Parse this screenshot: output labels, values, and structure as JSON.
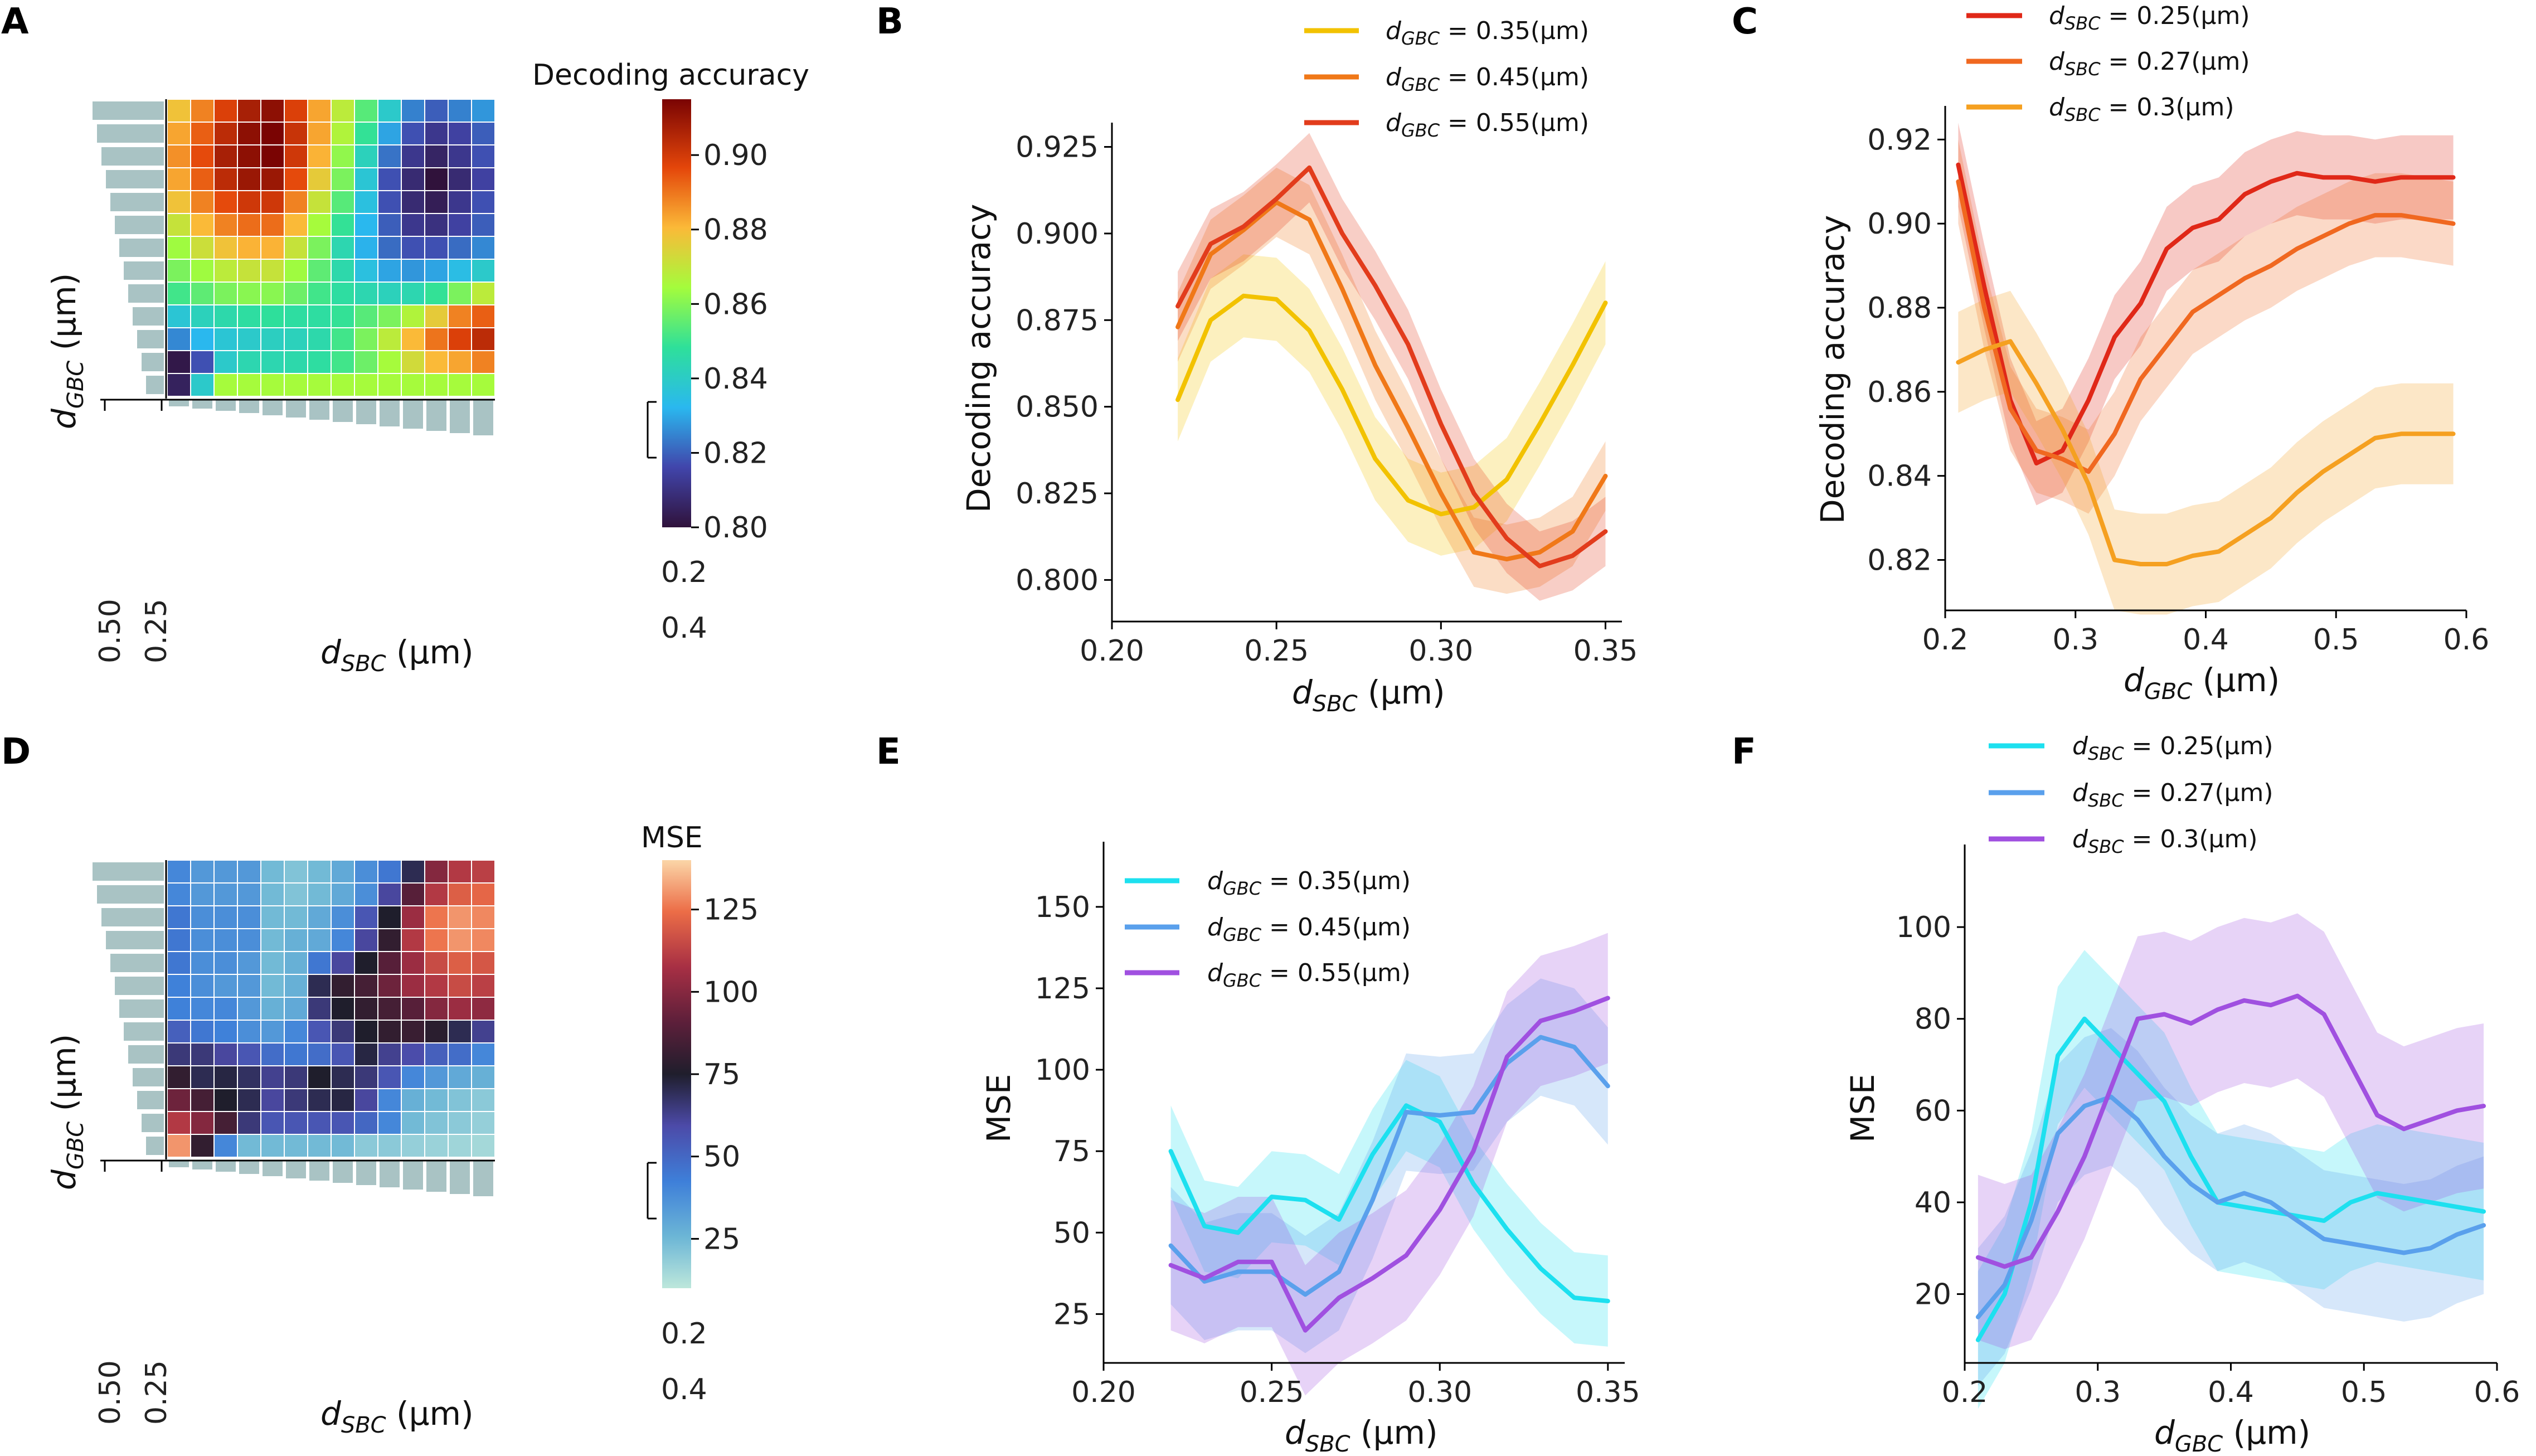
{
  "panels": {
    "A": "A",
    "B": "B",
    "C": "C",
    "D": "D",
    "E": "E",
    "F": "F"
  },
  "chart_data": [
    {
      "id": "A",
      "type": "heatmap",
      "colormap": "turbo",
      "title": "",
      "colorbar_title": "Decoding accuracy",
      "xlabel_main": "d",
      "xlabel_sub": "SBC",
      "xlabel_unit": " (μm)",
      "ylabel_main": "d",
      "ylabel_sub": "GBC",
      "ylabel_unit": " (μm)",
      "dendro_x_ticks": [
        "0.2",
        "0.4"
      ],
      "dendro_y_ticks": [
        "0.50",
        "0.25"
      ],
      "clim": [
        0.8,
        0.915
      ],
      "colorbar_ticks": [
        0.8,
        0.82,
        0.84,
        0.86,
        0.88,
        0.9
      ],
      "colorbar_tick_labels": [
        "0.80",
        "0.82",
        "0.84",
        "0.86",
        "0.88",
        "0.90"
      ],
      "values": [
        [
          0.88,
          0.89,
          0.9,
          0.908,
          0.912,
          0.9,
          0.885,
          0.87,
          0.855,
          0.84,
          0.825,
          0.82,
          0.825,
          0.828
        ],
        [
          0.885,
          0.895,
          0.905,
          0.912,
          0.918,
          0.903,
          0.885,
          0.868,
          0.85,
          0.83,
          0.818,
          0.812,
          0.815,
          0.82
        ],
        [
          0.888,
          0.898,
          0.908,
          0.912,
          0.915,
          0.902,
          0.883,
          0.863,
          0.843,
          0.823,
          0.812,
          0.806,
          0.812,
          0.818
        ],
        [
          0.885,
          0.895,
          0.905,
          0.91,
          0.91,
          0.898,
          0.878,
          0.86,
          0.838,
          0.818,
          0.808,
          0.8,
          0.808,
          0.815
        ],
        [
          0.88,
          0.89,
          0.898,
          0.902,
          0.902,
          0.89,
          0.872,
          0.855,
          0.836,
          0.818,
          0.808,
          0.804,
          0.812,
          0.818
        ],
        [
          0.872,
          0.882,
          0.89,
          0.893,
          0.893,
          0.882,
          0.866,
          0.85,
          0.833,
          0.82,
          0.812,
          0.81,
          0.815,
          0.82
        ],
        [
          0.865,
          0.873,
          0.88,
          0.883,
          0.883,
          0.872,
          0.86,
          0.845,
          0.832,
          0.822,
          0.818,
          0.818,
          0.822,
          0.826
        ],
        [
          0.86,
          0.865,
          0.87,
          0.872,
          0.872,
          0.865,
          0.856,
          0.846,
          0.836,
          0.83,
          0.828,
          0.83,
          0.835,
          0.84
        ],
        [
          0.852,
          0.856,
          0.86,
          0.862,
          0.862,
          0.858,
          0.852,
          0.848,
          0.845,
          0.843,
          0.845,
          0.85,
          0.86,
          0.87
        ],
        [
          0.838,
          0.843,
          0.846,
          0.848,
          0.849,
          0.848,
          0.848,
          0.85,
          0.855,
          0.86,
          0.868,
          0.878,
          0.89,
          0.895
        ],
        [
          0.826,
          0.833,
          0.838,
          0.84,
          0.842,
          0.843,
          0.846,
          0.852,
          0.86,
          0.87,
          0.882,
          0.892,
          0.9,
          0.905
        ],
        [
          0.802,
          0.818,
          0.84,
          0.845,
          0.845,
          0.846,
          0.848,
          0.852,
          0.858,
          0.866,
          0.874,
          0.882,
          0.885,
          0.89
        ],
        [
          0.805,
          0.84,
          0.866,
          0.866,
          0.866,
          0.866,
          0.866,
          0.866,
          0.866,
          0.866,
          0.866,
          0.866,
          0.866,
          0.866
        ]
      ]
    },
    {
      "id": "B",
      "type": "line",
      "title": "",
      "xlabel_main": "d",
      "xlabel_sub": "SBC",
      "xlabel_unit": " (μm)",
      "ylabel": "Decoding accuracy",
      "xlim": [
        0.2,
        0.355
      ],
      "ylim": [
        0.788,
        0.932
      ],
      "xticks": [
        0.2,
        0.25,
        0.3,
        0.35
      ],
      "xtick_labels": [
        "0.20",
        "0.25",
        "0.30",
        "0.35"
      ],
      "yticks": [
        0.8,
        0.825,
        0.85,
        0.875,
        0.9,
        0.925
      ],
      "ytick_labels": [
        "0.800",
        "0.825",
        "0.850",
        "0.875",
        "0.900",
        "0.925"
      ],
      "x": [
        0.22,
        0.23,
        0.24,
        0.25,
        0.26,
        0.27,
        0.28,
        0.29,
        0.3,
        0.31,
        0.32,
        0.33,
        0.34,
        0.35
      ],
      "series": [
        {
          "name": "d_GBC = 0.35(μm)",
          "label_main": "d",
          "label_sub": "GBC",
          "label_rest": " = 0.35(μm)",
          "color": "#f2c200",
          "values": [
            0.852,
            0.875,
            0.882,
            0.881,
            0.872,
            0.855,
            0.835,
            0.823,
            0.819,
            0.821,
            0.829,
            0.845,
            0.862,
            0.88
          ],
          "band": 0.012
        },
        {
          "name": "d_GBC = 0.45(μm)",
          "label_main": "d",
          "label_sub": "GBC",
          "label_rest": " = 0.45(μm)",
          "color": "#f07818",
          "values": [
            0.873,
            0.894,
            0.901,
            0.909,
            0.904,
            0.884,
            0.862,
            0.844,
            0.825,
            0.808,
            0.806,
            0.808,
            0.814,
            0.83
          ],
          "band": 0.01
        },
        {
          "name": "d_GBC = 0.55(μm)",
          "label_main": "d",
          "label_sub": "GBC",
          "label_rest": " = 0.55(μm)",
          "color": "#e23c1c",
          "values": [
            0.879,
            0.897,
            0.902,
            0.91,
            0.919,
            0.9,
            0.885,
            0.868,
            0.845,
            0.825,
            0.812,
            0.804,
            0.807,
            0.814
          ],
          "band": 0.01
        }
      ]
    },
    {
      "id": "C",
      "type": "line",
      "title": "",
      "xlabel_main": "d",
      "xlabel_sub": "GBC",
      "xlabel_unit": " (μm)",
      "ylabel": "Decoding accuracy",
      "xlim": [
        0.2,
        0.6
      ],
      "ylim": [
        0.808,
        0.928
      ],
      "xticks": [
        0.2,
        0.3,
        0.4,
        0.5,
        0.6
      ],
      "xtick_labels": [
        "0.2",
        "0.3",
        "0.4",
        "0.5",
        "0.6"
      ],
      "yticks": [
        0.82,
        0.84,
        0.86,
        0.88,
        0.9,
        0.92
      ],
      "ytick_labels": [
        "0.82",
        "0.84",
        "0.86",
        "0.88",
        "0.90",
        "0.92"
      ],
      "x": [
        0.21,
        0.23,
        0.25,
        0.27,
        0.29,
        0.31,
        0.33,
        0.35,
        0.37,
        0.39,
        0.41,
        0.43,
        0.45,
        0.47,
        0.49,
        0.51,
        0.53,
        0.55,
        0.57,
        0.59
      ],
      "series": [
        {
          "name": "d_SBC = 0.25(μm)",
          "label_main": "d",
          "label_sub": "SBC",
          "label_rest": " = 0.25(μm)",
          "color": "#e02818",
          "values": [
            0.914,
            0.885,
            0.858,
            0.843,
            0.846,
            0.858,
            0.873,
            0.881,
            0.894,
            0.899,
            0.901,
            0.907,
            0.91,
            0.912,
            0.911,
            0.911,
            0.91,
            0.911,
            0.911,
            0.911
          ],
          "band": 0.01
        },
        {
          "name": "d_SBC = 0.27(μm)",
          "label_main": "d",
          "label_sub": "SBC",
          "label_rest": " = 0.27(μm)",
          "color": "#f06820",
          "values": [
            0.91,
            0.88,
            0.856,
            0.846,
            0.844,
            0.841,
            0.85,
            0.863,
            0.871,
            0.879,
            0.883,
            0.887,
            0.89,
            0.894,
            0.897,
            0.9,
            0.902,
            0.902,
            0.901,
            0.9
          ],
          "band": 0.01
        },
        {
          "name": "d_SBC = 0.3(μm)",
          "label_main": "d",
          "label_sub": "SBC",
          "label_rest": " = 0.3(μm)",
          "color": "#f5a020",
          "values": [
            0.867,
            0.87,
            0.872,
            0.862,
            0.851,
            0.838,
            0.82,
            0.819,
            0.819,
            0.821,
            0.822,
            0.826,
            0.83,
            0.836,
            0.841,
            0.845,
            0.849,
            0.85,
            0.85,
            0.85
          ],
          "band": 0.012
        }
      ]
    },
    {
      "id": "D",
      "type": "heatmap",
      "colormap": "icefire",
      "title": "",
      "colorbar_title": "MSE",
      "xlabel_main": "d",
      "xlabel_sub": "SBC",
      "xlabel_unit": " (μm)",
      "ylabel_main": "d",
      "ylabel_sub": "GBC",
      "ylabel_unit": " (μm)",
      "dendro_x_ticks": [
        "0.2",
        "0.4"
      ],
      "dendro_y_ticks": [
        "0.50",
        "0.25"
      ],
      "clim": [
        10,
        140
      ],
      "colorbar_ticks": [
        25,
        50,
        75,
        100,
        125
      ],
      "colorbar_tick_labels": [
        "25",
        "50",
        "75",
        "100",
        "125"
      ],
      "values": [
        [
          40,
          35,
          35,
          35,
          25,
          22,
          25,
          30,
          38,
          45,
          70,
          100,
          110,
          112
        ],
        [
          40,
          35,
          35,
          35,
          25,
          22,
          25,
          30,
          38,
          60,
          90,
          110,
          120,
          122
        ],
        [
          45,
          38,
          38,
          38,
          25,
          25,
          30,
          38,
          55,
          75,
          105,
          125,
          130,
          128
        ],
        [
          45,
          38,
          38,
          38,
          25,
          28,
          30,
          40,
          60,
          80,
          110,
          125,
          130,
          128
        ],
        [
          45,
          38,
          38,
          35,
          25,
          28,
          45,
          60,
          75,
          90,
          105,
          115,
          120,
          118
        ],
        [
          42,
          38,
          35,
          35,
          25,
          28,
          70,
          80,
          85,
          95,
          105,
          110,
          115,
          112
        ],
        [
          42,
          40,
          40,
          35,
          28,
          30,
          65,
          75,
          80,
          85,
          90,
          100,
          105,
          102
        ],
        [
          52,
          45,
          42,
          38,
          35,
          40,
          55,
          65,
          75,
          80,
          82,
          78,
          70,
          62
        ],
        [
          65,
          65,
          60,
          55,
          48,
          45,
          48,
          55,
          72,
          62,
          58,
          52,
          48,
          40
        ],
        [
          80,
          70,
          72,
          68,
          62,
          65,
          75,
          70,
          65,
          55,
          40,
          35,
          30,
          28
        ],
        [
          95,
          85,
          75,
          70,
          60,
          65,
          70,
          72,
          60,
          40,
          28,
          25,
          22,
          20
        ],
        [
          110,
          100,
          85,
          65,
          55,
          55,
          55,
          55,
          50,
          40,
          25,
          22,
          20,
          18
        ],
        [
          130,
          80,
          40,
          25,
          25,
          25,
          25,
          25,
          20,
          20,
          18,
          17,
          16,
          15
        ]
      ]
    },
    {
      "id": "E",
      "type": "line",
      "title": "",
      "xlabel_main": "d",
      "xlabel_sub": "SBC",
      "xlabel_unit": " (μm)",
      "ylabel": "MSE",
      "xlim": [
        0.2,
        0.355
      ],
      "ylim": [
        10,
        170
      ],
      "xticks": [
        0.2,
        0.25,
        0.3,
        0.35
      ],
      "xtick_labels": [
        "0.20",
        "0.25",
        "0.30",
        "0.35"
      ],
      "yticks": [
        25,
        50,
        75,
        100,
        125,
        150
      ],
      "ytick_labels": [
        "25",
        "50",
        "75",
        "100",
        "125",
        "150"
      ],
      "x": [
        0.22,
        0.23,
        0.24,
        0.25,
        0.26,
        0.27,
        0.28,
        0.29,
        0.3,
        0.31,
        0.32,
        0.33,
        0.34,
        0.35
      ],
      "series": [
        {
          "name": "d_GBC = 0.35(μm)",
          "label_main": "d",
          "label_sub": "GBC",
          "label_rest": " = 0.35(μm)",
          "color": "#1de0ef",
          "values": [
            75,
            52,
            50,
            61,
            60,
            54,
            74,
            89,
            84,
            65,
            51,
            39,
            30,
            29
          ],
          "band": 14
        },
        {
          "name": "d_GBC = 0.45(μm)",
          "label_main": "d",
          "label_sub": "GBC",
          "label_rest": " = 0.45(μm)",
          "color": "#5aa0ec",
          "values": [
            46,
            35,
            38,
            38,
            31,
            38,
            60,
            87,
            86,
            87,
            102,
            110,
            107,
            95
          ],
          "band": 18
        },
        {
          "name": "d_GBC = 0.55(μm)",
          "label_main": "d",
          "label_sub": "GBC",
          "label_rest": " = 0.55(μm)",
          "color": "#a050e0",
          "values": [
            40,
            36,
            41,
            41,
            20,
            30,
            36,
            43,
            57,
            75,
            104,
            115,
            118,
            122
          ],
          "band": 20
        }
      ]
    },
    {
      "id": "F",
      "type": "line",
      "title": "",
      "xlabel_main": "d",
      "xlabel_sub": "GBC",
      "xlabel_unit": " (μm)",
      "ylabel": "MSE",
      "xlim": [
        0.2,
        0.6
      ],
      "ylim": [
        5,
        118
      ],
      "xticks": [
        0.2,
        0.3,
        0.4,
        0.5,
        0.6
      ],
      "xtick_labels": [
        "0.2",
        "0.3",
        "0.4",
        "0.5",
        "0.6"
      ],
      "yticks": [
        20,
        40,
        60,
        80,
        100
      ],
      "ytick_labels": [
        "20",
        "40",
        "60",
        "80",
        "100"
      ],
      "x": [
        0.21,
        0.23,
        0.25,
        0.27,
        0.29,
        0.31,
        0.33,
        0.35,
        0.37,
        0.39,
        0.41,
        0.43,
        0.45,
        0.47,
        0.49,
        0.51,
        0.53,
        0.55,
        0.57,
        0.59
      ],
      "series": [
        {
          "name": "d_SBC = 0.25(μm)",
          "label_main": "d",
          "label_sub": "SBC",
          "label_rest": " = 0.25(μm)",
          "color": "#1de0ef",
          "values": [
            10,
            20,
            40,
            72,
            80,
            74,
            68,
            62,
            50,
            40,
            39,
            38,
            37,
            36,
            40,
            42,
            41,
            40,
            39,
            38
          ],
          "band": 15
        },
        {
          "name": "d_SBC = 0.27(μm)",
          "label_main": "d",
          "label_sub": "SBC",
          "label_rest": " = 0.27(μm)",
          "color": "#5aa0ec",
          "values": [
            15,
            22,
            36,
            55,
            61,
            63,
            58,
            50,
            44,
            40,
            42,
            40,
            36,
            32,
            31,
            30,
            29,
            30,
            33,
            35
          ],
          "band": 15
        },
        {
          "name": "d_SBC = 0.3(μm)",
          "label_main": "d",
          "label_sub": "SBC",
          "label_rest": " = 0.3(μm)",
          "color": "#a050e0",
          "values": [
            28,
            26,
            28,
            38,
            50,
            65,
            80,
            81,
            79,
            82,
            84,
            83,
            85,
            81,
            70,
            59,
            56,
            58,
            60,
            61
          ],
          "band": 18
        }
      ]
    }
  ]
}
